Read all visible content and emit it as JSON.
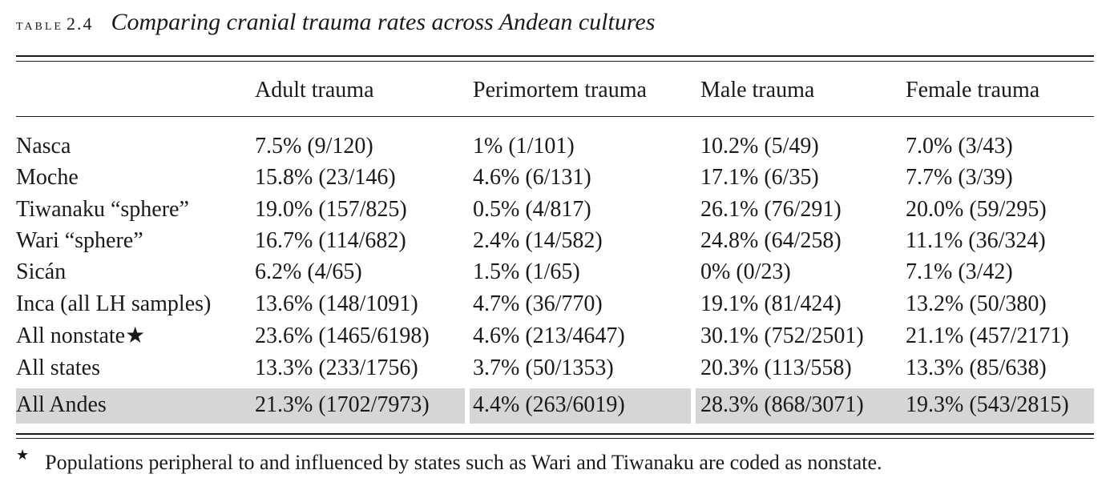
{
  "caption": {
    "label": "Table",
    "number": "2.4",
    "title": "Comparing cranial trauma rates across Andean cultures"
  },
  "columns": [
    "",
    "Adult trauma",
    "Perimortem trauma",
    "Male trauma",
    "Female trauma"
  ],
  "rows": [
    {
      "name": "Nasca",
      "cells": [
        "7.5% (9/120)",
        "1% (1/101)",
        "10.2% (5/49)",
        "7.0% (3/43)"
      ]
    },
    {
      "name": "Moche",
      "cells": [
        "15.8% (23/146)",
        "4.6% (6/131)",
        "17.1% (6/35)",
        "7.7% (3/39)"
      ]
    },
    {
      "name": "Tiwanaku “sphere”",
      "cells": [
        "19.0% (157/825)",
        "0.5% (4/817)",
        "26.1% (76/291)",
        "20.0% (59/295)"
      ]
    },
    {
      "name": "Wari “sphere”",
      "cells": [
        "16.7% (114/682)",
        "2.4% (14/582)",
        "24.8% (64/258)",
        "11.1% (36/324)"
      ]
    },
    {
      "name": "Sicán",
      "cells": [
        "6.2% (4/65)",
        "1.5% (1/65)",
        "0% (0/23)",
        "7.1% (3/42)"
      ]
    },
    {
      "name": "Inca (all LH samples)",
      "cells": [
        "13.6% (148/1091)",
        "4.7% (36/770)",
        "19.1% (81/424)",
        "13.2% (50/380)"
      ]
    },
    {
      "name": "All nonstate★",
      "cells": [
        "23.6% (1465/6198)",
        "4.6% (213/4647)",
        "30.1% (752/2501)",
        "21.1% (457/2171)"
      ]
    },
    {
      "name": "All states",
      "cells": [
        "13.3% (233/1756)",
        "3.7% (50/1353)",
        "20.3% (113/558)",
        "13.3% (85/638)"
      ]
    },
    {
      "name": "All Andes",
      "cells": [
        "21.3% (1702/7973)",
        "4.4% (263/6019)",
        "28.3% (868/3071)",
        "19.3% (543/2815)"
      ],
      "highlighted": true
    }
  ],
  "footnote": {
    "mark": "★",
    "text": "Populations peripheral to and influenced by states such as Wari and Tiwanaku are coded as nonstate."
  },
  "colors": {
    "text": "#1a1a1a",
    "highlight_row": "#d6d6d6"
  }
}
